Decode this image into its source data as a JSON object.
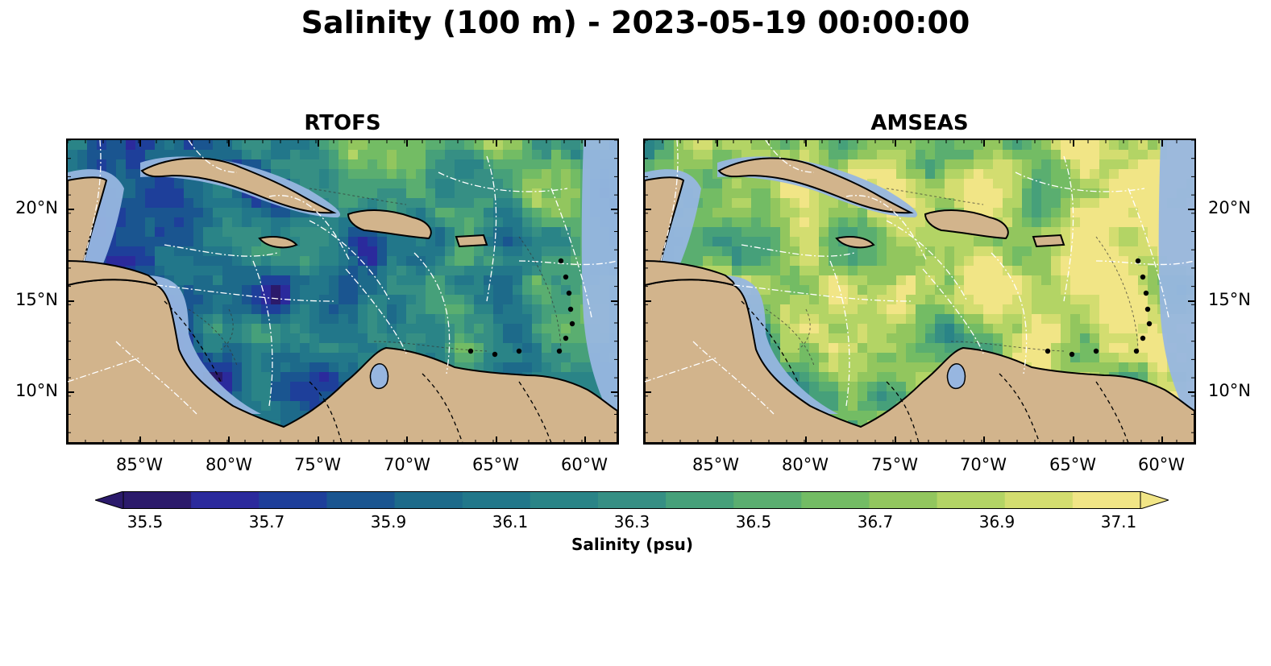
{
  "figure": {
    "title": "Salinity (100 m) - 2023-05-19 00:00:00"
  },
  "panels": [
    {
      "title": "RTOFS",
      "palette_bias": -1
    },
    {
      "title": "AMSEAS",
      "palette_bias": 1
    }
  ],
  "axes": {
    "x_ticks": [
      "85°W",
      "80°W",
      "75°W",
      "70°W",
      "65°W",
      "60°W"
    ],
    "y_ticks": [
      "20°N",
      "15°N",
      "10°N"
    ]
  },
  "colorbar": {
    "label": "Salinity (psu)",
    "tick_labels": [
      "35.5",
      "35.7",
      "35.9",
      "36.1",
      "36.3",
      "36.5",
      "36.7",
      "36.9",
      "37.1"
    ],
    "range": [
      35.5,
      37.1
    ],
    "extend": "both",
    "colors": [
      "#2b1a6b",
      "#2b2a9c",
      "#1e3f9a",
      "#1a5590",
      "#1d6a8a",
      "#22778a",
      "#2a8487",
      "#368f84",
      "#46a07a",
      "#5aae70",
      "#73bc64",
      "#92c65e",
      "#b3d465",
      "#d3dd70",
      "#f1e586"
    ]
  },
  "colors": {
    "land": "#d2b48c",
    "shelf_water": "#97b6e0",
    "coast": "#000000"
  }
}
